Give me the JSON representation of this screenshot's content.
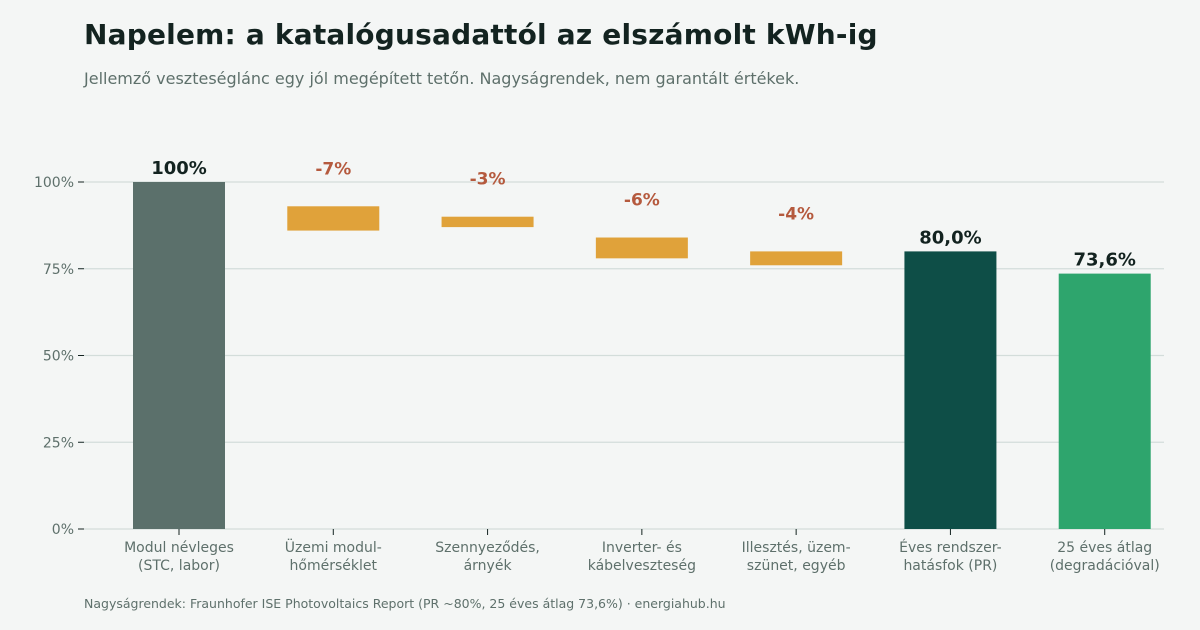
{
  "header": {
    "title": "Napelem: a katalógusadattól az elszámolt kWh-ig",
    "subtitle": "Jellemző veszteséglánc egy jól megépített tetőn. Nagyságrendek, nem garantált értékek."
  },
  "footer": {
    "source": "Nagyságrendek: Fraunhofer ISE Photovoltaics Report (PR ~80%, 25 éves átlag 73,6%)  ·  energiahub.hu"
  },
  "colors": {
    "background": "#f4f6f5",
    "start_bar": "#5b706b",
    "loss_bar": "#e0a23a",
    "pr_bar": "#0e4e47",
    "avg_bar": "#2ea56d",
    "grid": "#d3ddda",
    "loss_label": "#b55a3e",
    "total_label": "#132320"
  },
  "chart_data": {
    "type": "bar",
    "subtype": "waterfall",
    "title": "Napelem: a katalógusadattól az elszámolt kWh-ig",
    "subtitle": "Jellemző veszteséglánc egy jól megépített tetőn. Nagyságrendek, nem garantált értékek.",
    "xlabel": "",
    "ylabel": "",
    "ylim": [
      0,
      100
    ],
    "yticks": [
      0,
      25,
      50,
      75,
      100
    ],
    "ytick_labels": [
      "0%",
      "25%",
      "50%",
      "75%",
      "100%"
    ],
    "grid": true,
    "legend": "none",
    "categories": [
      [
        "Modul névleges",
        "(STC, labor)"
      ],
      [
        "Üzemi modul-",
        "hőmérséklet"
      ],
      [
        "Szennyeződés,",
        "árnyék"
      ],
      [
        "Inverter- és",
        "kábelveszteség"
      ],
      [
        "Illesztés, üzem-",
        "szünet, egyéb"
      ],
      [
        "Éves rendszer-",
        "hatásfok (PR)"
      ],
      [
        "25 éves átlag",
        "(degradációval)"
      ]
    ],
    "bars": [
      {
        "kind": "total",
        "start": 0,
        "end": 100,
        "label": "100%",
        "color": "#5b706b"
      },
      {
        "kind": "loss",
        "start": 93,
        "end": 86,
        "label": "-7%",
        "color": "#e0a23a"
      },
      {
        "kind": "loss",
        "start": 90,
        "end": 87,
        "label": "-3%",
        "color": "#e0a23a"
      },
      {
        "kind": "loss",
        "start": 84,
        "end": 78,
        "label": "-6%",
        "color": "#e0a23a"
      },
      {
        "kind": "loss",
        "start": 80,
        "end": 76,
        "label": "-4%",
        "color": "#e0a23a"
      },
      {
        "kind": "total",
        "start": 0,
        "end": 80,
        "label": "80,0%",
        "color": "#0e4e47"
      },
      {
        "kind": "total",
        "start": 0,
        "end": 73.6,
        "label": "73,6%",
        "color": "#2ea56d"
      }
    ]
  }
}
